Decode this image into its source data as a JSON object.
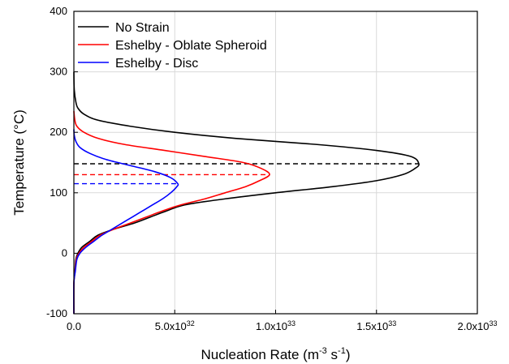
{
  "chart_data": {
    "type": "line",
    "title": "",
    "xlabel": "Nucleation Rate (m-3 s-1)",
    "ylabel": "Temperature (°C)",
    "xlim": [
      0,
      2e+33
    ],
    "ylim": [
      -100,
      400
    ],
    "grid": true,
    "legend_position": "top-left",
    "x_ticks": [
      0,
      5e+32,
      1e+33,
      1.5e+33,
      2e+33
    ],
    "x_tick_labels": [
      {
        "mantissa": "0.0",
        "exp": ""
      },
      {
        "mantissa": "5.0x10",
        "exp": "32"
      },
      {
        "mantissa": "1.0x10",
        "exp": "33"
      },
      {
        "mantissa": "1.5x10",
        "exp": "33"
      },
      {
        "mantissa": "2.0x10",
        "exp": "33"
      }
    ],
    "y_ticks": [
      -100,
      0,
      100,
      200,
      300,
      400
    ],
    "y_tick_labels": [
      "-100",
      "0",
      "100",
      "200",
      "300",
      "400"
    ],
    "series": [
      {
        "name": "No Strain",
        "color": "#000000",
        "points": [
          [
            0,
            -100
          ],
          [
            0,
            -50
          ],
          [
            5e+30,
            -30
          ],
          [
            1e+31,
            -10
          ],
          [
            2e+31,
            0
          ],
          [
            4e+31,
            10
          ],
          [
            8e+31,
            20
          ],
          [
            1.2e+32,
            30
          ],
          [
            2e+32,
            40
          ],
          [
            3e+32,
            50
          ],
          [
            3.8e+32,
            60
          ],
          [
            4.6e+32,
            70
          ],
          [
            5.5e+32,
            80
          ],
          [
            7.5e+32,
            90
          ],
          [
            1e+33,
            100
          ],
          [
            1.28e+33,
            110
          ],
          [
            1.5e+33,
            120
          ],
          [
            1.63e+33,
            130
          ],
          [
            1.69e+33,
            140
          ],
          [
            1.71e+33,
            148
          ],
          [
            1.67e+33,
            160
          ],
          [
            1.5e+33,
            170
          ],
          [
            1.2e+33,
            180
          ],
          [
            8e+32,
            190
          ],
          [
            5e+32,
            200
          ],
          [
            2.8e+32,
            210
          ],
          [
            1.2e+32,
            220
          ],
          [
            5e+31,
            230
          ],
          [
            2e+31,
            240
          ],
          [
            1e+31,
            250
          ],
          [
            2e+30,
            270
          ],
          [
            0,
            300
          ]
        ]
      },
      {
        "name": "Eshelby - Oblate Spheroid",
        "color": "#ff0000",
        "points": [
          [
            0,
            -100
          ],
          [
            0,
            -50
          ],
          [
            6e+30,
            -30
          ],
          [
            1.2e+31,
            -10
          ],
          [
            2.5e+31,
            0
          ],
          [
            5e+31,
            10
          ],
          [
            9e+31,
            20
          ],
          [
            1.3e+32,
            30
          ],
          [
            2e+32,
            40
          ],
          [
            2.8e+32,
            50
          ],
          [
            3.6e+32,
            60
          ],
          [
            4.4e+32,
            70
          ],
          [
            5.3e+32,
            80
          ],
          [
            6.5e+32,
            90
          ],
          [
            7.5e+32,
            100
          ],
          [
            8.5e+32,
            110
          ],
          [
            9.2e+32,
            120
          ],
          [
            9.7e+32,
            130
          ],
          [
            9.3e+32,
            140
          ],
          [
            8.4e+32,
            150
          ],
          [
            6.5e+32,
            160
          ],
          [
            4.5e+32,
            170
          ],
          [
            2.5e+32,
            180
          ],
          [
            1.2e+32,
            190
          ],
          [
            5e+31,
            200
          ],
          [
            1.5e+31,
            210
          ],
          [
            5e+30,
            220
          ],
          [
            0,
            235
          ]
        ]
      },
      {
        "name": "Eshelby - Disc",
        "color": "#0000ff",
        "points": [
          [
            0,
            -100
          ],
          [
            0,
            -50
          ],
          [
            7e+30,
            -30
          ],
          [
            1.5e+31,
            -10
          ],
          [
            3e+31,
            0
          ],
          [
            6e+31,
            10
          ],
          [
            1e+32,
            20
          ],
          [
            1.4e+32,
            30
          ],
          [
            1.9e+32,
            40
          ],
          [
            2.4e+32,
            50
          ],
          [
            2.9e+32,
            60
          ],
          [
            3.4e+32,
            70
          ],
          [
            3.9e+32,
            80
          ],
          [
            4.4e+32,
            90
          ],
          [
            4.8e+32,
            100
          ],
          [
            5.1e+32,
            110
          ],
          [
            5.15e+32,
            115
          ],
          [
            4.8e+32,
            125
          ],
          [
            4e+32,
            135
          ],
          [
            2.8e+32,
            145
          ],
          [
            1.6e+32,
            155
          ],
          [
            8e+31,
            165
          ],
          [
            3e+31,
            175
          ],
          [
            1e+31,
            185
          ],
          [
            2e+30,
            195
          ],
          [
            0,
            205
          ]
        ]
      }
    ],
    "peak_lines": [
      {
        "series": "No Strain",
        "color": "#000000",
        "y": 148,
        "x_end": 1.71e+33
      },
      {
        "series": "Eshelby - Oblate Spheroid",
        "color": "#ff0000",
        "y": 130,
        "x_end": 9.7e+32
      },
      {
        "series": "Eshelby - Disc",
        "color": "#0000ff",
        "y": 115,
        "x_end": 5.15e+32
      }
    ]
  }
}
